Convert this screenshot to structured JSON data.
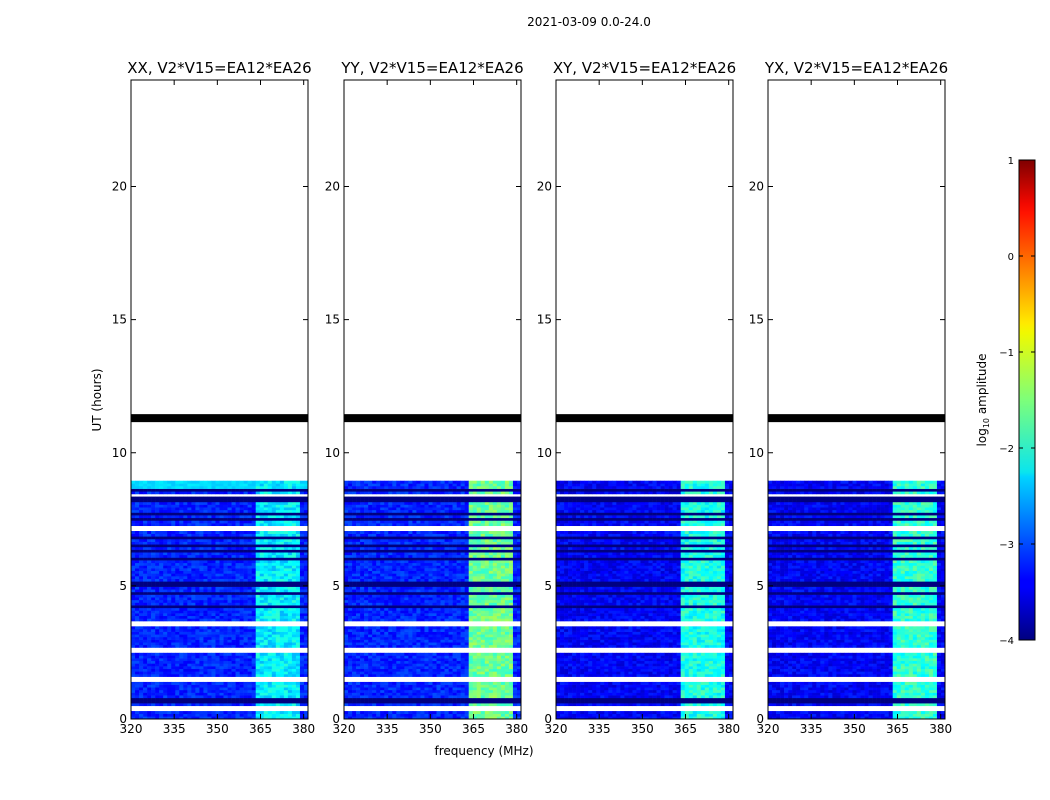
{
  "chart_data": {
    "type": "heatmap",
    "suptitle": "2021-03-09 0.0-24.0",
    "xlabel": "frequency (MHz)",
    "ylabel": "UT (hours)",
    "xlim": [
      320,
      381.5
    ],
    "ylim": [
      0,
      24
    ],
    "xticks": [
      320,
      335,
      350,
      365,
      380
    ],
    "yticks": [
      0,
      5,
      10,
      15,
      20
    ],
    "colorbar": {
      "label": "log$_{10}$ amplitude",
      "label_main": "log",
      "label_sub": "10",
      "label_tail": " amplitude",
      "min": -4,
      "max": 1,
      "ticks": [
        -4,
        -3,
        -2,
        -1,
        0,
        1
      ],
      "colormap": "jet"
    },
    "data_extent_hours": [
      0,
      8.95
    ],
    "flagged_gap_hours": [
      11.15,
      11.45
    ],
    "white_gaps_hours": [
      [
        0.3,
        0.5
      ],
      [
        1.35,
        1.55
      ],
      [
        2.45,
        2.65
      ],
      [
        3.45,
        3.65
      ],
      [
        7.05,
        7.25
      ],
      [
        8.35,
        8.5
      ]
    ],
    "dark_rows_hours": [
      0.65,
      0.7,
      4.25,
      4.7,
      5.05,
      5.15,
      6.0,
      6.3,
      6.55,
      6.85,
      7.5,
      7.7,
      8.25,
      8.6
    ],
    "rfi_band_mhz": [
      363,
      379
    ],
    "panels": [
      {
        "title": "XX, V2*V15=EA12*EA26",
        "base_log_amp": -3.2,
        "rfi_log_amp": -2.2
      },
      {
        "title": "YY, V2*V15=EA12*EA26",
        "base_log_amp": -3.2,
        "rfi_log_amp": -1.6
      },
      {
        "title": "XY, V2*V15=EA12*EA26",
        "base_log_amp": -3.4,
        "rfi_log_amp": -2.0
      },
      {
        "title": "YX, V2*V15=EA12*EA26",
        "base_log_amp": -3.4,
        "rfi_log_amp": -1.9
      }
    ]
  }
}
